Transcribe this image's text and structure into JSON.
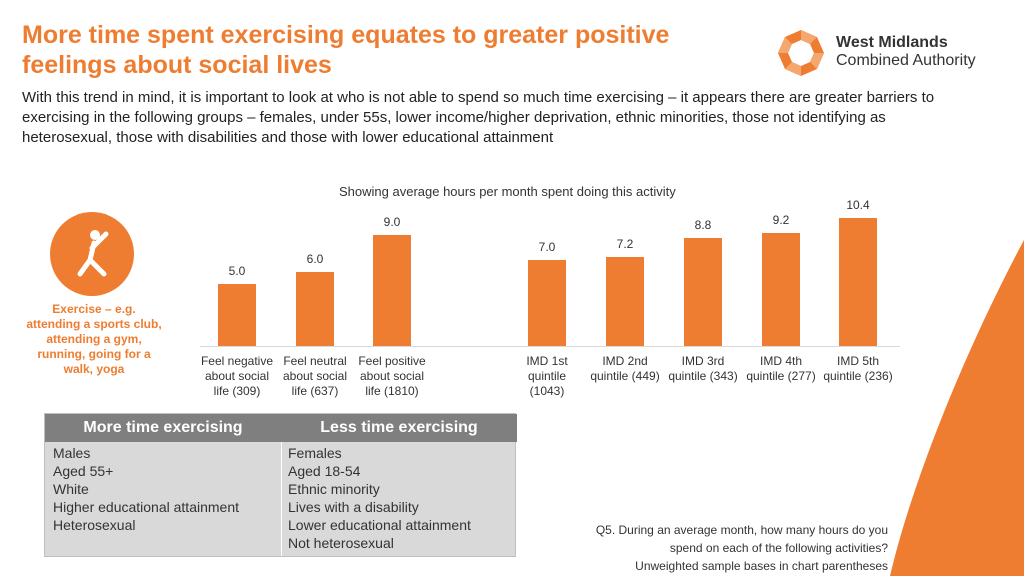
{
  "header": {
    "title": "More time spent exercising equates to greater positive feelings about social lives",
    "intro": "With this trend in mind, it is important to look at who is not able to spend so much time exercising – it appears there are greater barriers to exercising in the following groups – females, under 55s, lower income/higher deprivation, ethnic minorities, those not identifying as heterosexual, those with disabilities and those with lower educational attainment"
  },
  "logo": {
    "line1": "West Midlands",
    "line2": "Combined Authority"
  },
  "activity": {
    "icon": "exercise-person-icon",
    "label": "Exercise – e.g. attending a sports club, attending a gym, running, going for a walk, yoga"
  },
  "colors": {
    "accent": "#ee7d31",
    "table_header": "#7f7f7f",
    "table_body": "#d9d9d9"
  },
  "chart_data": {
    "type": "bar",
    "title": "Showing average hours per month spent doing this activity",
    "categories": [
      "Feel negative about social life (309)",
      "Feel neutral about social life (637)",
      "Feel positive about social life (1810)",
      "IMD 1st quintile (1043)",
      "IMD 2nd quintile (449)",
      "IMD 3rd quintile (343)",
      "IMD 4th quintile (277)",
      "IMD 5th quintile (236)"
    ],
    "values": [
      5.0,
      6.0,
      9.0,
      7.0,
      7.2,
      8.8,
      9.2,
      10.4
    ],
    "value_labels": [
      "5.0",
      "6.0",
      "9.0",
      "7.0",
      "7.2",
      "8.8",
      "9.2",
      "10.4"
    ],
    "xlabel": "",
    "ylabel": "",
    "ylim": [
      0,
      10.4
    ]
  },
  "table": {
    "headers": [
      "More time exercising",
      "Less time exercising"
    ],
    "more": [
      "Males",
      "Aged 55+",
      "White",
      "Higher educational attainment",
      "Heterosexual"
    ],
    "less": [
      "Females",
      "Aged 18-54",
      "Ethnic minority",
      "Lives with a disability",
      "Lower educational attainment",
      "Not heterosexual"
    ]
  },
  "footnote": {
    "line1": "Q5. During an average month, how many hours do you",
    "line2": "spend on each of the following activities?",
    "line3": "Unweighted sample bases in chart parentheses"
  }
}
